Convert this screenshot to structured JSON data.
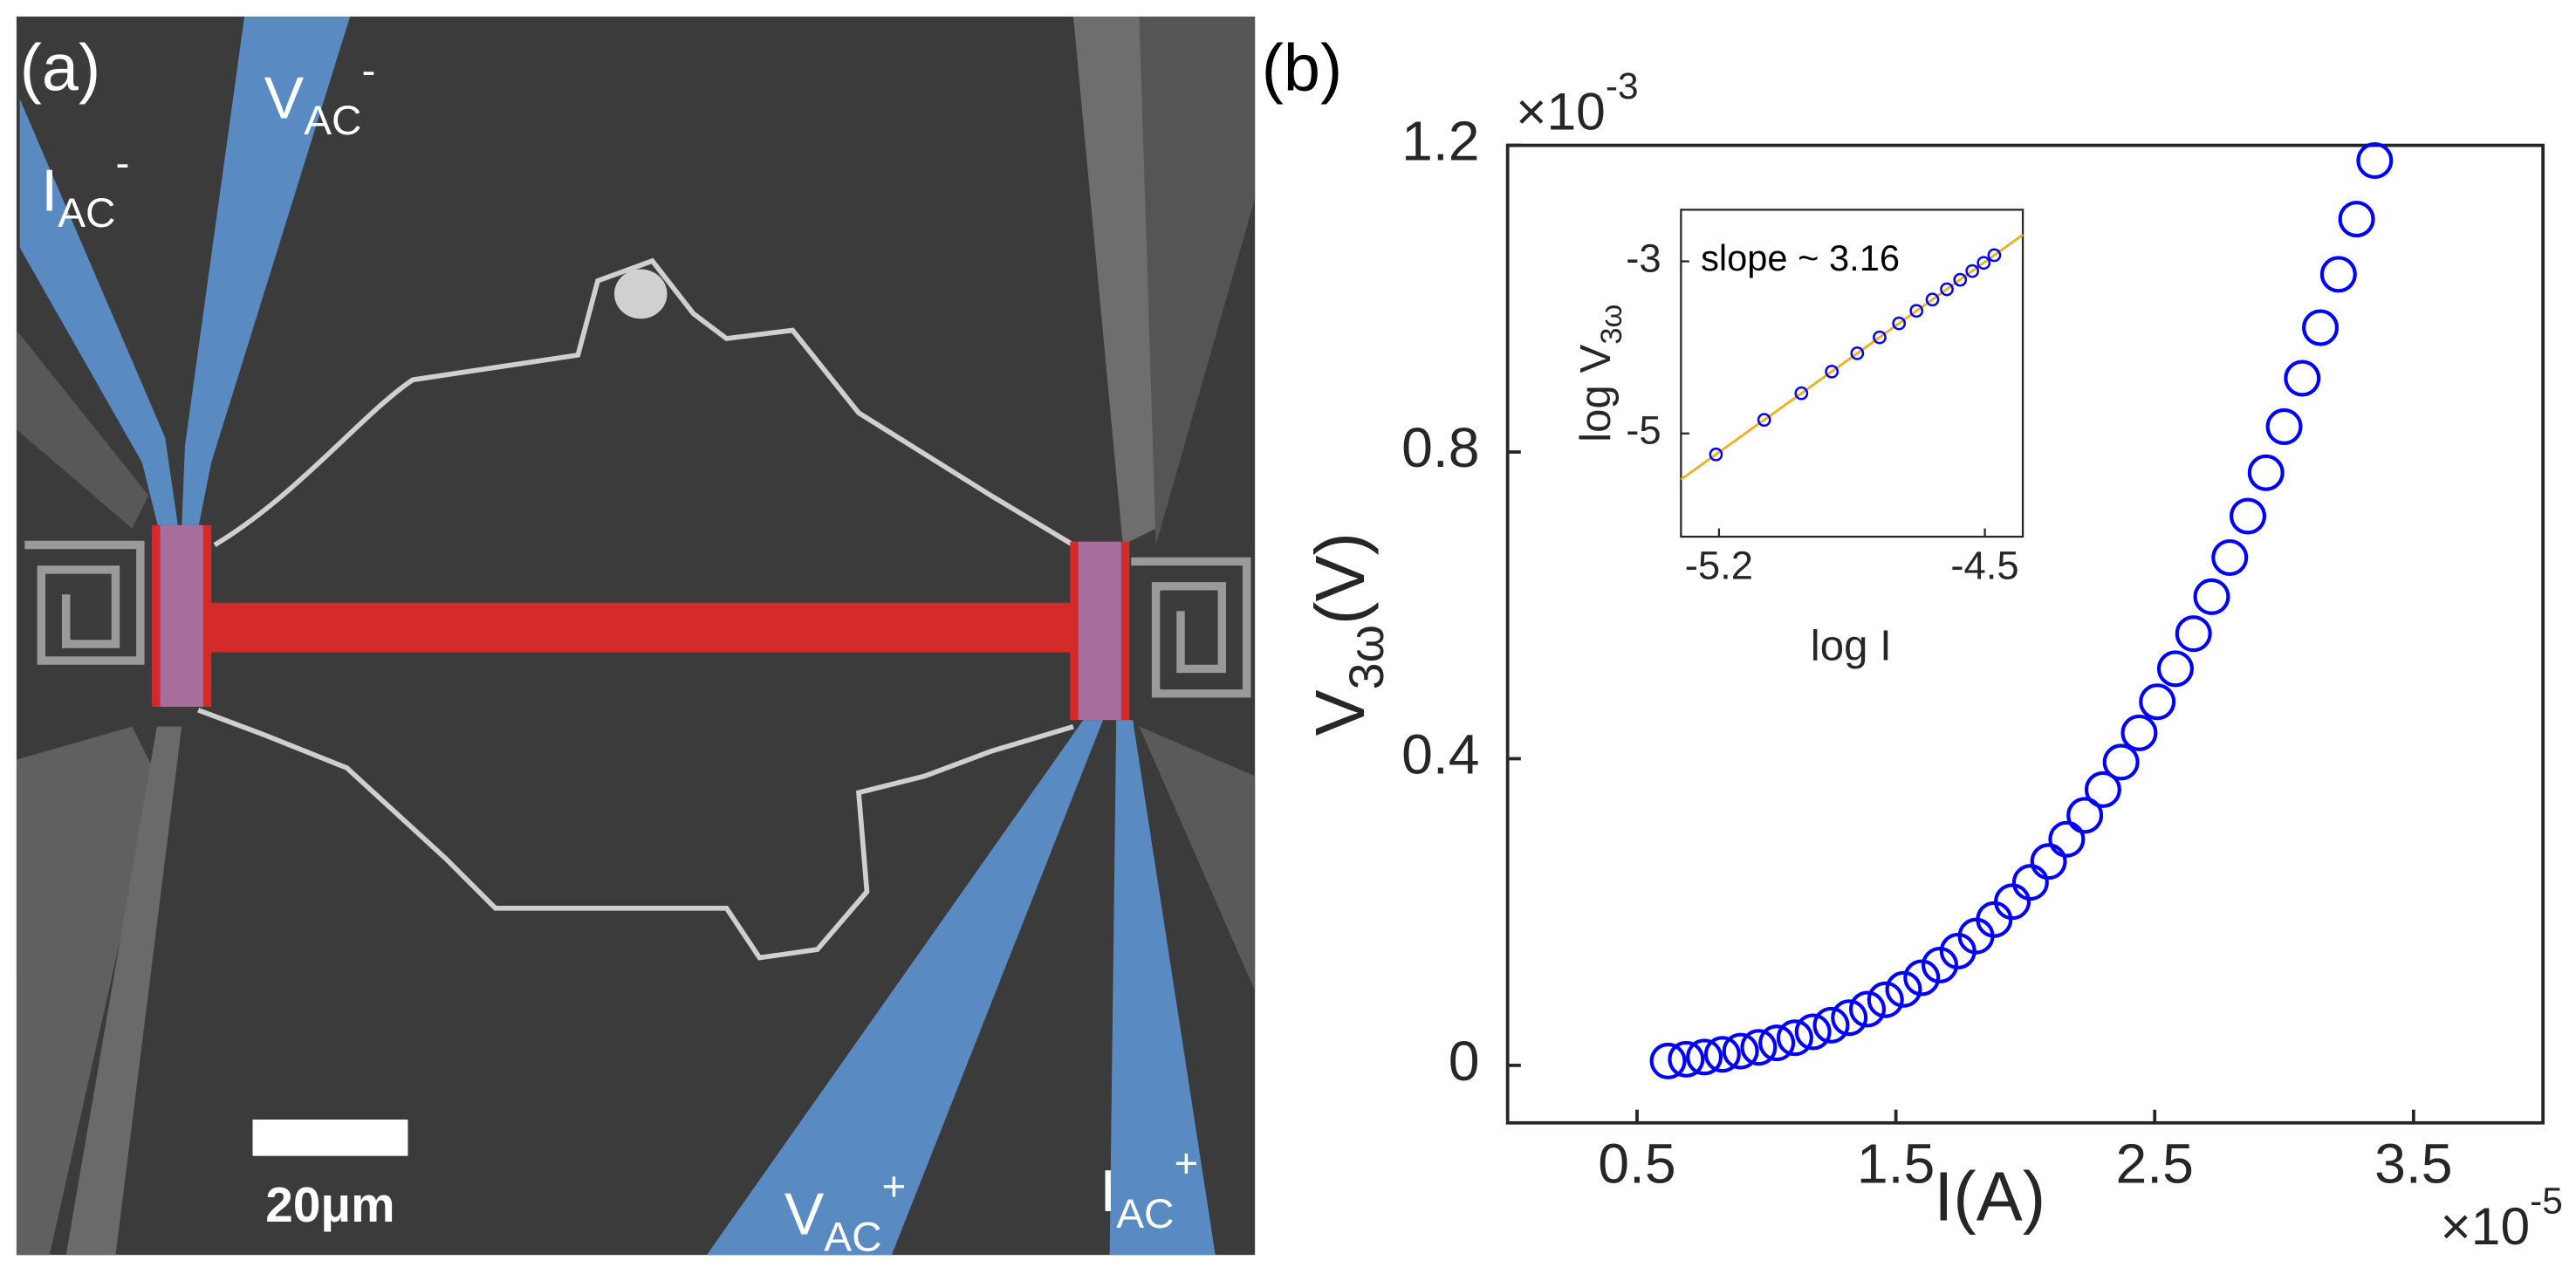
{
  "panel_a": {
    "label": "(a)",
    "electrodes": [
      {
        "main": "I",
        "sub": "AC",
        "sup": "-"
      },
      {
        "main": "V",
        "sub": "AC",
        "sup": "-"
      },
      {
        "main": "V",
        "sub": "AC",
        "sup": "+"
      },
      {
        "main": "I",
        "sub": "AC",
        "sup": "+"
      }
    ],
    "scale_bar": "20μm"
  },
  "panel_b": {
    "label": "(b)"
  },
  "chart_data": [
    {
      "type": "scatter",
      "marker": "open-circle",
      "color": "#0000ff",
      "x": [
        0.62,
        0.69,
        0.76,
        0.83,
        0.9,
        0.97,
        1.04,
        1.11,
        1.18,
        1.25,
        1.32,
        1.39,
        1.46,
        1.53,
        1.6,
        1.67,
        1.74,
        1.81,
        1.88,
        1.95,
        2.02,
        2.09,
        2.16,
        2.23,
        2.3,
        2.37,
        2.44,
        2.51,
        2.58,
        2.65,
        2.72,
        2.79,
        2.86,
        2.93,
        3.0,
        3.07,
        3.14,
        3.21,
        3.28,
        3.35
      ],
      "y": [
        0.0057,
        0.008,
        0.0109,
        0.0144,
        0.0186,
        0.0235,
        0.0293,
        0.036,
        0.0437,
        0.0524,
        0.0622,
        0.0733,
        0.0856,
        0.0992,
        0.1143,
        0.1308,
        0.149,
        0.1687,
        0.1903,
        0.2135,
        0.2387,
        0.2659,
        0.295,
        0.3261,
        0.3597,
        0.3955,
        0.4337,
        0.4742,
        0.5173,
        0.5631,
        0.6113,
        0.6623,
        0.7164,
        0.773,
        0.8331,
        0.8962,
        0.9622,
        1.0318,
        1.1038,
        1.1801
      ],
      "xlim": [
        0,
        4
      ],
      "ylim": [
        -0.075,
        1.2
      ],
      "xticks": [
        0.5,
        1.5,
        2.5,
        3.5
      ],
      "yticks": [
        0,
        0.4,
        0.8,
        1.2
      ],
      "xlabel": "I(A)",
      "ylabel": {
        "main": "V",
        "sub": "3ω",
        "suffix": "(V)"
      },
      "x_multiplier": {
        "base": "×10",
        "exponent": "-5"
      },
      "y_multiplier": {
        "base": "×10",
        "exponent": "-3"
      }
    },
    {
      "type": "scatter",
      "marker": "open-circle",
      "color": "#0000ff",
      "x": [
        -5.208,
        -5.081,
        -4.983,
        -4.903,
        -4.836,
        -4.777,
        -4.726,
        -4.68,
        -4.638,
        -4.6,
        -4.565,
        -4.533,
        -4.503,
        -4.475
      ],
      "y": [
        -5.244,
        -4.842,
        -4.533,
        -4.281,
        -4.068,
        -3.883,
        -3.721,
        -3.575,
        -3.444,
        -3.324,
        -3.214,
        -3.112,
        -3.017,
        -2.928
      ],
      "fit_line": {
        "x": [
          -5.3,
          -4.4
        ],
        "y": [
          -5.535,
          -2.691
        ],
        "color": "#edb120"
      },
      "xlim": [
        -5.3,
        -4.4
      ],
      "ylim": [
        -6.2,
        -2.4
      ],
      "xticks": [
        -5.2,
        -4.5
      ],
      "yticks": [
        -5,
        -3
      ],
      "xlabel": "log I",
      "ylabel": {
        "main": "log V",
        "sub": "3ω"
      },
      "annotation": "slope ~ 3.16"
    }
  ]
}
